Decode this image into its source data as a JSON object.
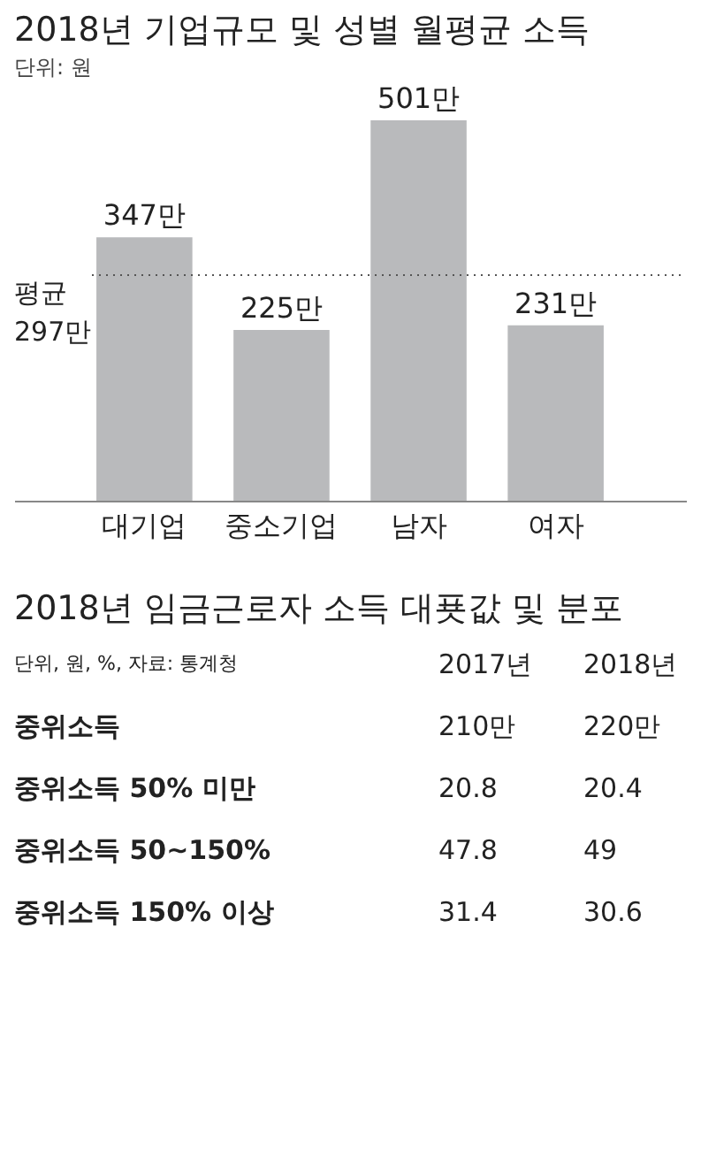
{
  "chart_data": [
    {
      "type": "bar",
      "title": "2018년 기업규모 및 성별 월평균 소득",
      "subtitle": "단위: 원",
      "categories": [
        "대기업",
        "중소기업",
        "남자",
        "여자"
      ],
      "values": [
        347,
        225,
        501,
        231
      ],
      "color": "#b9babc",
      "value_labels": [
        "347만",
        "225만",
        "501만",
        "231만"
      ],
      "ref_lines": [
        {
          "axis": "y",
          "value": 297,
          "label": "평균 297만",
          "color": "#555555",
          "line_style": "dotted"
        }
      ]
    },
    {
      "type": "other",
      "title": "2018년 임금근로자 소득 대푯값 및 분포",
      "annotations": [
        "단위, 원, %, 자료: 통계청",
        "2017년",
        "2018년",
        "중위소득",
        "210만",
        "220만",
        "중위소득 50% 미만",
        "20.8",
        "20.4",
        "중위소득 50~150%",
        "47.8",
        "49",
        "중위소득 150% 이상",
        "31.4",
        "30.6"
      ]
    }
  ]
}
